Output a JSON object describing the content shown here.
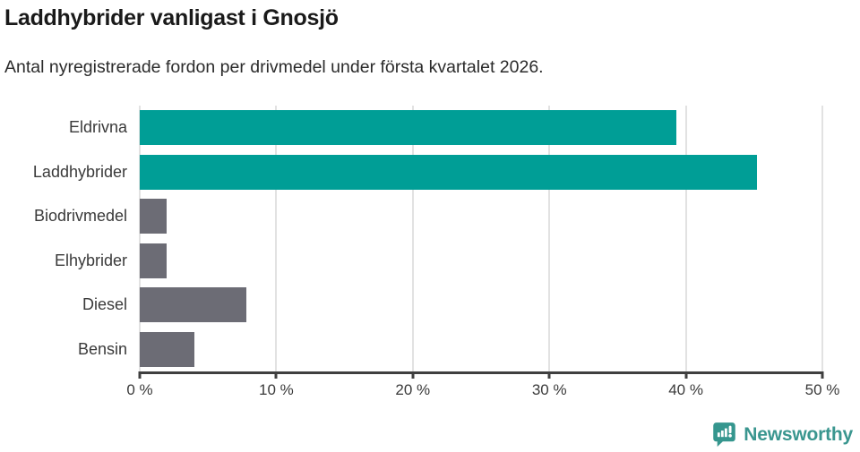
{
  "title": "Laddhybrider vanligast i Gnosjö",
  "subtitle": "Antal nyregistrerade fordon per drivmedel under första kvartalet 2026.",
  "chart_data": {
    "type": "bar",
    "orientation": "horizontal",
    "title": "Laddhybrider vanligast i Gnosjö",
    "subtitle": "Antal nyregistrerade fordon per drivmedel under första kvartalet 2026.",
    "categories": [
      "Eldrivna",
      "Laddhybrider",
      "Biodrivmedel",
      "Elhybrider",
      "Diesel",
      "Bensin"
    ],
    "values": [
      39.3,
      45.2,
      2.0,
      2.0,
      7.8,
      4.0
    ],
    "unit": "%",
    "xlim": [
      0,
      50
    ],
    "x_tick_values": [
      0,
      10,
      20,
      30,
      40,
      50
    ],
    "x_tick_labels": [
      "0 %",
      "10 %",
      "20 %",
      "30 %",
      "40 %",
      "50 %"
    ],
    "bar_colors": [
      "#009e96",
      "#009e96",
      "#6c6c75",
      "#6c6c75",
      "#6c6c75",
      "#6c6c75"
    ],
    "highlight_color": "#009e96",
    "default_color": "#6c6c75",
    "gridline_color": "#e2e2e2",
    "axis_color": "#3f3f3f",
    "grid": true,
    "legend": "none"
  },
  "footer": {
    "brand": "Newsworthy",
    "logo_icon": "newsworthy-speech-bubble-chart-icon",
    "brand_color": "#3a968f"
  }
}
